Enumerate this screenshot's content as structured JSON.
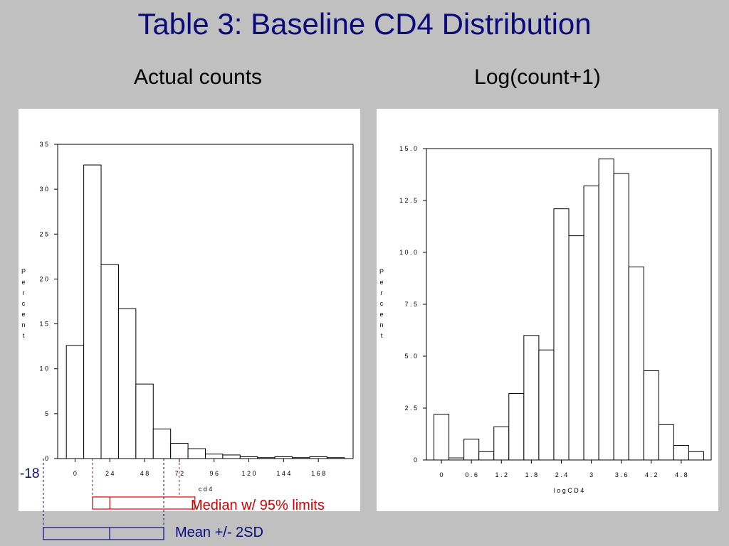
{
  "slide": {
    "title": "Table 3: Baseline CD4 Distribution",
    "subtitle_left": "Actual counts",
    "subtitle_right": "Log(count+1)"
  },
  "chart_data": [
    {
      "type": "bar",
      "title": "Actual counts",
      "xlabel": "c d 4",
      "ylabel": "Percent",
      "xlim": [
        -12,
        192
      ],
      "ylim": [
        0,
        35
      ],
      "xticks": [
        0,
        24,
        48,
        72,
        96,
        120,
        144,
        168
      ],
      "xtick_labels": [
        "0",
        "2 4",
        "4 8",
        "7 2",
        "9 6",
        "1 2 0",
        "1 4 4",
        "1 6 8"
      ],
      "yticks": [
        0,
        5,
        10,
        15,
        20,
        25,
        30,
        35
      ],
      "ytick_labels": [
        "0",
        "5",
        "1 0",
        "1 5",
        "2 0",
        "2 5",
        "3 0",
        "3 5"
      ],
      "bin_width": 12,
      "bin_centers": [
        0,
        12,
        24,
        36,
        48,
        60,
        72,
        84,
        96,
        108,
        120,
        132,
        144,
        156,
        168,
        180
      ],
      "values": [
        12.6,
        32.7,
        21.6,
        16.7,
        8.3,
        3.3,
        1.7,
        1.1,
        0.5,
        0.4,
        0.2,
        0.1,
        0.2,
        0.1,
        0.2,
        0.1
      ],
      "grid": false
    },
    {
      "type": "bar",
      "title": "Log(count+1)",
      "xlabel": "l o g C D 4",
      "ylabel": "Percent",
      "xlim": [
        -0.3,
        5.4
      ],
      "ylim": [
        0,
        15
      ],
      "xticks": [
        0,
        0.6,
        1.2,
        1.8,
        2.4,
        3,
        3.6,
        4.2,
        4.8
      ],
      "xtick_labels": [
        "0",
        "0 . 6",
        "1 . 2",
        "1 . 8",
        "2 . 4",
        "3",
        "3 . 6",
        "4 . 2",
        "4 . 8"
      ],
      "yticks": [
        0,
        2.5,
        5,
        7.5,
        10,
        12.5,
        15
      ],
      "ytick_labels": [
        "0",
        "2 . 5",
        "5 . 0",
        "7 . 5",
        "1 0 . 0",
        "1 2 . 5",
        "1 5 . 0"
      ],
      "bin_width": 0.3,
      "bin_centers": [
        0,
        0.3,
        0.6,
        0.9,
        1.2,
        1.5,
        1.8,
        2.1,
        2.4,
        2.7,
        3.0,
        3.3,
        3.6,
        3.9,
        4.2,
        4.5,
        4.8,
        5.1
      ],
      "values": [
        2.2,
        0.1,
        1.0,
        0.4,
        1.6,
        3.2,
        6.0,
        5.3,
        12.1,
        10.8,
        13.2,
        14.5,
        13.8,
        9.3,
        4.3,
        1.7,
        0.7,
        0.4
      ],
      "grid": false
    }
  ],
  "annotations": {
    "neg18_label": "-18",
    "median_label": "Median w/ 95% limits",
    "median_interval": {
      "low": 12,
      "median": 24,
      "high": 70
    },
    "mean_label": "Mean +/- 2SD",
    "mean_interval": {
      "low": -18,
      "mean": 24,
      "high": 70
    },
    "colors": {
      "median": "#e00000",
      "mean": "#0a0a9a",
      "title": "#0a0a7a"
    }
  }
}
